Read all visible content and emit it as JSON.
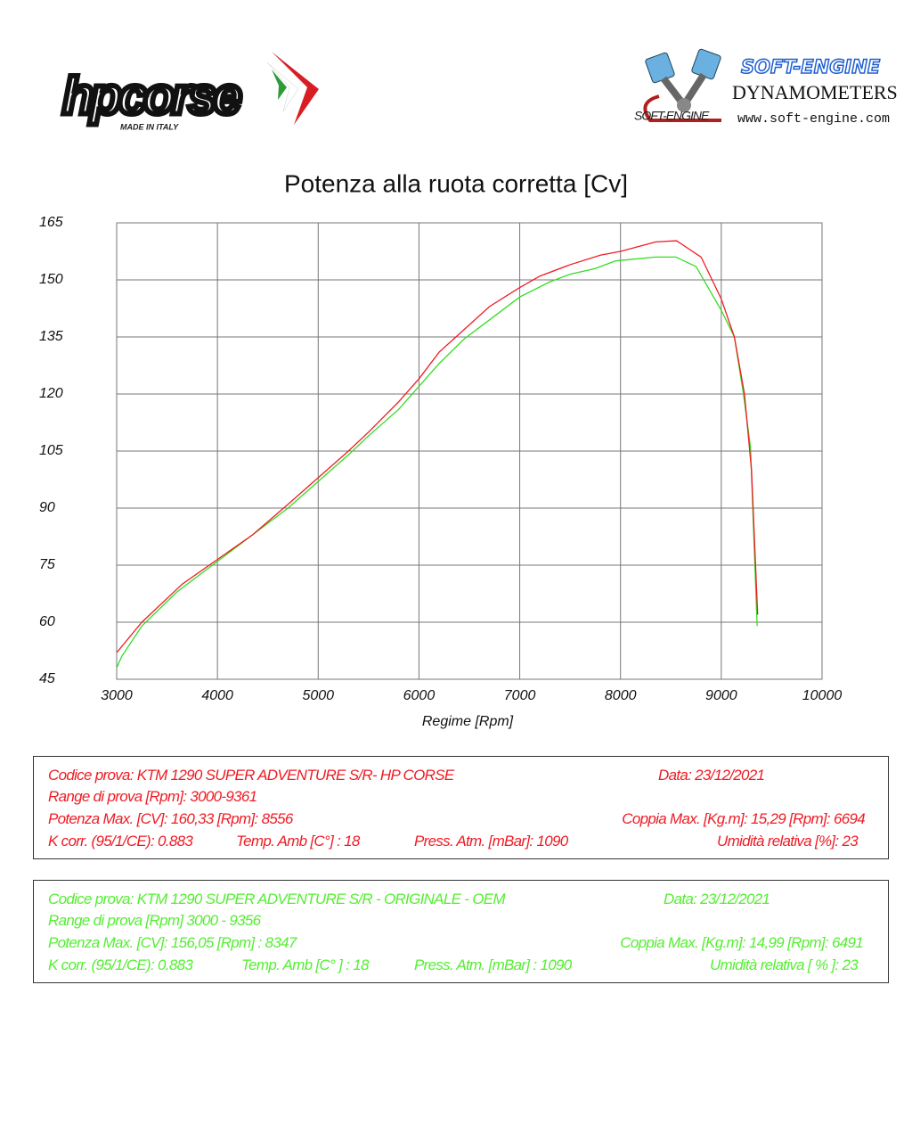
{
  "header": {
    "left_logo": "hpcorse",
    "left_tagline": "MADE IN ITALY",
    "right_mark": "SOFT-ENGINE",
    "right_brand": "SOFT-ENGINE",
    "right_sub": "DYNAMOMETERS",
    "right_url": "www.soft-engine.com"
  },
  "chart_data": {
    "type": "line",
    "title": "Potenza alla ruota corretta [Cv]",
    "x_label": "Regime [Rpm]",
    "xlim": [
      3000,
      10000
    ],
    "xticks": [
      3000,
      4000,
      5000,
      6000,
      7000,
      8000,
      9000,
      10000
    ],
    "ylim": [
      45,
      165
    ],
    "yticks": [
      45,
      60,
      75,
      90,
      105,
      120,
      135,
      150,
      165
    ],
    "grid": true,
    "series": [
      {
        "color": "#ee1c24",
        "x": [
          3000,
          3250,
          3650,
          4000,
          4350,
          4700,
          5000,
          5300,
          5500,
          5800,
          6000,
          6200,
          6450,
          6700,
          7000,
          7200,
          7500,
          7800,
          8000,
          8350,
          8556,
          8800,
          9000,
          9130,
          9230,
          9300,
          9361
        ],
        "values": [
          52,
          60,
          70,
          76.5,
          83,
          91,
          98,
          105,
          110,
          118,
          124,
          131,
          137,
          143,
          148,
          151,
          154,
          156.5,
          157.5,
          160,
          160.3,
          156,
          145,
          135,
          120,
          100,
          62
        ]
      },
      {
        "color": "#33dd22",
        "x": [
          3000,
          3050,
          3250,
          3600,
          4000,
          4350,
          4700,
          5000,
          5300,
          5500,
          5800,
          6000,
          6200,
          6450,
          6700,
          7000,
          7300,
          7500,
          7750,
          7950,
          8347,
          8550,
          8750,
          9000,
          9130,
          9220,
          9290,
          9356
        ],
        "values": [
          48,
          51,
          59,
          68,
          76,
          83,
          90,
          97,
          104,
          109,
          116,
          122,
          128,
          134.5,
          139.5,
          145.5,
          149.5,
          151.5,
          153,
          155,
          156,
          156,
          153.5,
          142,
          135,
          120,
          106,
          59
        ]
      }
    ]
  },
  "info_boxes": [
    {
      "color": "#ee1c24",
      "lines": [
        [
          "Codice prova: KTM 1290 SUPER ADVENTURE S/R- HP CORSE",
          "Data: 23/12/2021"
        ],
        [
          "Range di prova  [Rpm]: 3000-9361"
        ],
        [
          "Potenza Max. [CV]:  160,33 [Rpm]:  8556",
          "Coppia Max. [Kg.m]:  15,29  [Rpm]:  6694"
        ],
        [
          "K corr. (95/1/CE): 0.883",
          "Temp. Amb  [C°] : 18",
          "Press. Atm.  [mBar]: 1090",
          "Umidità relativa [%]: 23"
        ]
      ]
    },
    {
      "color": "#55ee33",
      "lines": [
        [
          "Codice prova: KTM 1290 SUPER ADVENTURE S/R - ORIGINALE - OEM",
          "Data: 23/12/2021"
        ],
        [
          "Range di prova [Rpm] 3000 - 9356"
        ],
        [
          "Potenza Max. [CV]:  156,05  [Rpm] : 8347",
          "Coppia Max.  [Kg.m]:  14,99  [Rpm]:  6491"
        ],
        [
          "K corr. (95/1/CE): 0.883",
          "Temp. Amb [C° ] : 18",
          "Press. Atm. [mBar] : 1090",
          "Umidità relativa [ % ]: 23"
        ]
      ]
    }
  ]
}
